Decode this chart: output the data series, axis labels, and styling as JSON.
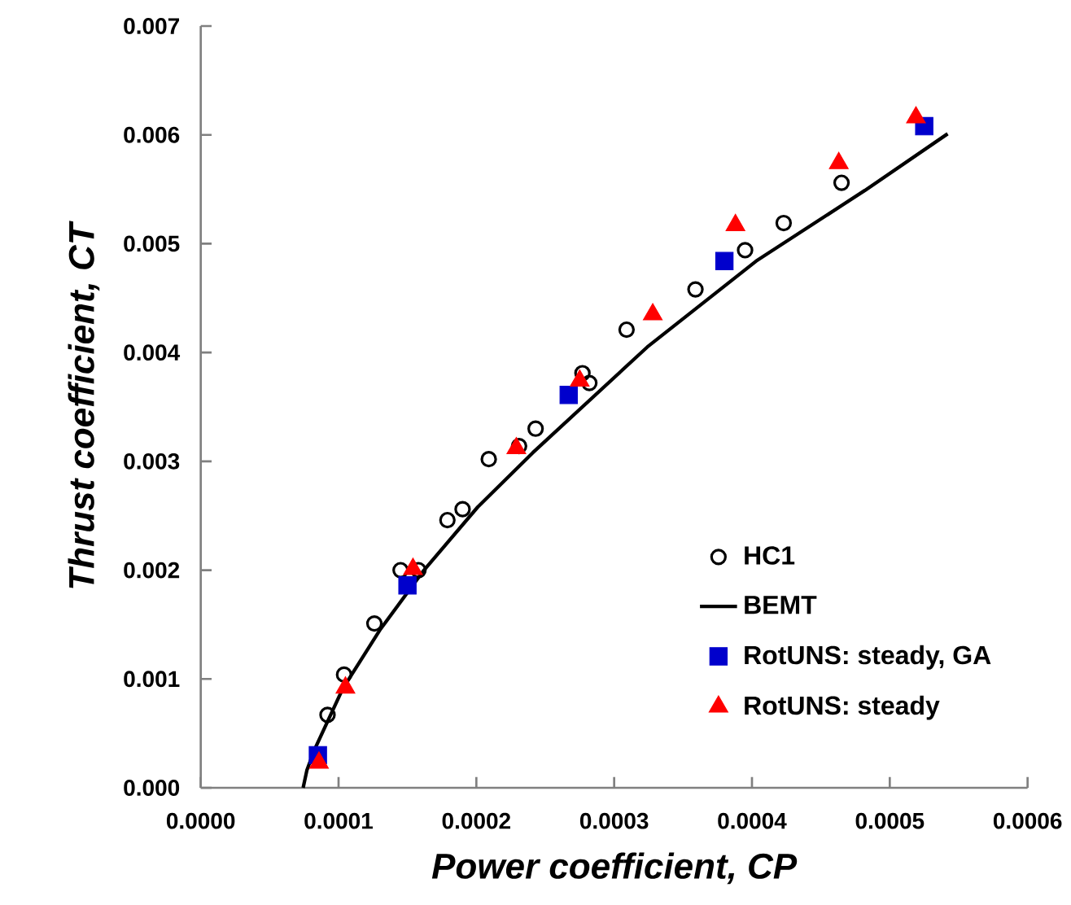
{
  "chart_data": {
    "type": "scatter",
    "xlabel": "Power coefficient, CP",
    "ylabel": "Thrust coefficient, CT",
    "xlim": [
      0,
      0.0006
    ],
    "ylim": [
      0,
      0.007
    ],
    "xticks": [
      {
        "value": 0,
        "label": "0.0000"
      },
      {
        "value": 0.0001,
        "label": "0.0001"
      },
      {
        "value": 0.0002,
        "label": "0.0002"
      },
      {
        "value": 0.0003,
        "label": "0.0003"
      },
      {
        "value": 0.0004,
        "label": "0.0004"
      },
      {
        "value": 0.0005,
        "label": "0.0005"
      },
      {
        "value": 0.0006,
        "label": "0.0006"
      }
    ],
    "yticks": [
      {
        "value": 0,
        "label": "0.000"
      },
      {
        "value": 0.001,
        "label": "0.001"
      },
      {
        "value": 0.002,
        "label": "0.002"
      },
      {
        "value": 0.003,
        "label": "0.003"
      },
      {
        "value": 0.004,
        "label": "0.004"
      },
      {
        "value": 0.005,
        "label": "0.005"
      },
      {
        "value": 0.006,
        "label": "0.006"
      },
      {
        "value": 0.007,
        "label": "0.007"
      }
    ],
    "legend": "bottom right",
    "series": [
      {
        "name": "HC1",
        "marker": "circle",
        "color": "#000000",
        "x": [
          9.2e-05,
          0.000104,
          0.000126,
          0.000145,
          0.000158,
          0.000179,
          0.00019,
          0.000209,
          0.000231,
          0.000243,
          0.000277,
          0.000282,
          0.000309,
          0.000359,
          0.000395,
          0.000423,
          0.000465
        ],
        "values": [
          0.00067,
          0.00104,
          0.00151,
          0.002,
          0.002,
          0.00246,
          0.00256,
          0.00302,
          0.00314,
          0.0033,
          0.00381,
          0.00372,
          0.00421,
          0.00458,
          0.00494,
          0.00519,
          0.00556
        ]
      },
      {
        "name": "BEMT",
        "type": "line",
        "marker": "none",
        "color": "#000000",
        "x": [
          7.43e-05,
          7.7e-05,
          8.29e-05,
          0.000103,
          0.00013,
          0.000162,
          0.000201,
          0.000241,
          0.000324,
          0.000403,
          0.000482,
          0.000542
        ],
        "values": [
          0,
          0.00016,
          0.00036,
          0.00091,
          0.00145,
          0.002,
          0.00258,
          0.00308,
          0.00405,
          0.00484,
          0.00549,
          0.00601
        ]
      },
      {
        "name": "RotUNS: steady, GA",
        "marker": "square",
        "color": "#0000cc",
        "x": [
          8.5e-05,
          0.00015,
          0.000267,
          0.00038,
          0.000525
        ],
        "values": [
          0.0003,
          0.00186,
          0.00361,
          0.00484,
          0.00608
        ]
      },
      {
        "name": "RotUNS: steady",
        "marker": "triangle",
        "color": "#ff0000",
        "x": [
          8.58e-05,
          0.000105,
          0.000154,
          0.000229,
          0.000275,
          0.000328,
          0.000388,
          0.000463,
          0.000519
        ],
        "values": [
          0.00023,
          0.00092,
          0.00201,
          0.00312,
          0.00374,
          0.00435,
          0.00517,
          0.00574,
          0.00616
        ]
      }
    ]
  }
}
